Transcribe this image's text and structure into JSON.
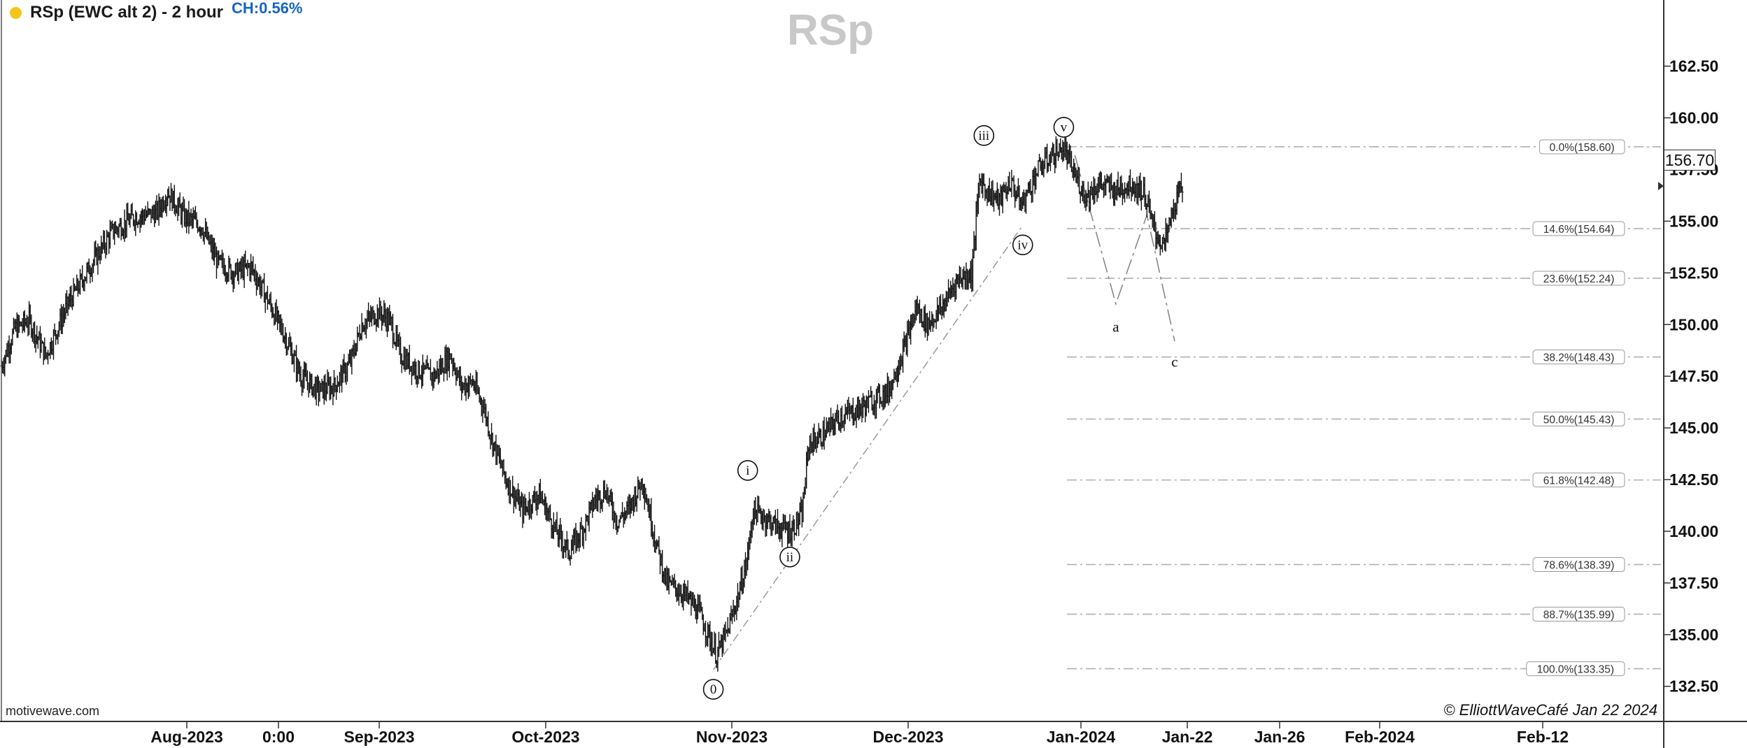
{
  "header": {
    "title": "RSp (EWC alt 2) - 2 hour",
    "change": "CH:0.56%"
  },
  "watermark": "RSp",
  "footer": {
    "site": "motivewave.com",
    "copyright": "© ElliottWaveCafé Jan 22 2024"
  },
  "colors": {
    "background": "#ffffff",
    "bars": "#111111",
    "fib_lines": "#aaaaaa",
    "status_dot": "#f5c518",
    "change_text": "#1565c0",
    "watermark": "#c8c8c8"
  },
  "chart_data": {
    "type": "ohlc",
    "title": "RSp (EWC alt 2) - 2 hour",
    "ylim": [
      130.8,
      165.7
    ],
    "y_ticks": [
      132.5,
      135.0,
      137.5,
      140.0,
      142.5,
      145.0,
      147.5,
      150.0,
      152.5,
      155.0,
      157.5,
      160.0,
      162.5
    ],
    "y_tick_labels": [
      "132.50",
      "135.00",
      "137.50",
      "140.00",
      "142.50",
      "145.00",
      "147.50",
      "150.00",
      "152.50",
      "155.00",
      "157.50",
      "160.00",
      "162.50"
    ],
    "last_price": 156.7,
    "last_price_label": "156.70",
    "x_labels": [
      "Aug-2023",
      "0:00",
      "Sep-2023",
      "Oct-2023",
      "Nov-2023",
      "Dec-2023",
      "Jan-2024",
      "Jan-22",
      "Jan-26",
      "Feb-2024",
      "Feb-12"
    ],
    "price_path": [
      [
        0,
        148.0
      ],
      [
        12,
        149.8
      ],
      [
        25,
        150.2
      ],
      [
        40,
        148.5
      ],
      [
        60,
        151.0
      ],
      [
        80,
        152.8
      ],
      [
        100,
        154.5
      ],
      [
        120,
        155.2
      ],
      [
        140,
        155.4
      ],
      [
        150,
        156.4
      ],
      [
        165,
        155.2
      ],
      [
        180,
        154.8
      ],
      [
        195,
        153.0
      ],
      [
        210,
        152.5
      ],
      [
        225,
        152.8
      ],
      [
        240,
        151.2
      ],
      [
        255,
        149.5
      ],
      [
        270,
        147.5
      ],
      [
        285,
        146.8
      ],
      [
        300,
        147.0
      ],
      [
        315,
        148.2
      ],
      [
        325,
        150.0
      ],
      [
        340,
        150.6
      ],
      [
        350,
        150.2
      ],
      [
        360,
        148.5
      ],
      [
        375,
        147.8
      ],
      [
        390,
        147.5
      ],
      [
        405,
        148.5
      ],
      [
        415,
        147.0
      ],
      [
        425,
        147.2
      ],
      [
        435,
        146.0
      ],
      [
        442,
        144.5
      ],
      [
        455,
        142.5
      ],
      [
        470,
        141.0
      ],
      [
        485,
        141.8
      ],
      [
        500,
        140.0
      ],
      [
        512,
        139.0
      ],
      [
        525,
        140.2
      ],
      [
        535,
        141.5
      ],
      [
        545,
        142.0
      ],
      [
        555,
        140.5
      ],
      [
        565,
        141.0
      ],
      [
        578,
        142.5
      ],
      [
        590,
        139.5
      ],
      [
        600,
        137.5
      ],
      [
        615,
        137.0
      ],
      [
        630,
        136.0
      ],
      [
        645,
        134.0
      ],
      [
        655,
        135.2
      ],
      [
        665,
        137.0
      ],
      [
        672,
        138.5
      ],
      [
        678,
        141.0
      ],
      [
        690,
        140.6
      ],
      [
        700,
        140.2
      ],
      [
        712,
        140.0
      ],
      [
        722,
        140.8
      ],
      [
        728,
        144.2
      ],
      [
        740,
        144.6
      ],
      [
        755,
        145.5
      ],
      [
        770,
        145.8
      ],
      [
        785,
        146.3
      ],
      [
        800,
        146.8
      ],
      [
        815,
        149.0
      ],
      [
        825,
        150.8
      ],
      [
        835,
        150.0
      ],
      [
        848,
        150.8
      ],
      [
        862,
        152.2
      ],
      [
        875,
        152.5
      ],
      [
        882,
        157.0
      ],
      [
        890,
        156.4
      ],
      [
        900,
        156.0
      ],
      [
        910,
        156.9
      ],
      [
        920,
        155.8
      ],
      [
        935,
        157.5
      ],
      [
        948,
        158.2
      ],
      [
        958,
        158.5
      ],
      [
        968,
        157.2
      ],
      [
        978,
        156.2
      ],
      [
        990,
        156.8
      ],
      [
        1005,
        156.5
      ],
      [
        1018,
        156.8
      ],
      [
        1030,
        156.4
      ],
      [
        1040,
        154.5
      ],
      [
        1048,
        153.8
      ],
      [
        1058,
        155.8
      ],
      [
        1065,
        156.7
      ]
    ],
    "fibonacci_levels": [
      {
        "price": 158.6,
        "label": "0.0%(158.60)"
      },
      {
        "price": 154.64,
        "label": "14.6%(154.64)"
      },
      {
        "price": 152.24,
        "label": "23.6%(152.24)"
      },
      {
        "price": 148.43,
        "label": "38.2%(148.43)"
      },
      {
        "price": 145.43,
        "label": "50.0%(145.43)"
      },
      {
        "price": 142.48,
        "label": "61.8%(142.48)"
      },
      {
        "price": 138.39,
        "label": "78.6%(138.39)"
      },
      {
        "price": 135.99,
        "label": "88.7%(135.99)"
      },
      {
        "price": 133.35,
        "label": "100.0%(133.35)"
      }
    ],
    "wave_labels": [
      {
        "text": "0",
        "x": 642,
        "price": 133.3,
        "circled": true
      },
      {
        "text": "i",
        "x": 673,
        "price": 142.2,
        "circled": true
      },
      {
        "text": "ii",
        "x": 711,
        "price": 139.7,
        "circled": true
      },
      {
        "text": "iii",
        "x": 886,
        "price": 158.4,
        "circled": true
      },
      {
        "text": "iv",
        "x": 921,
        "price": 154.8,
        "circled": true
      },
      {
        "text": "v",
        "x": 958,
        "price": 158.8,
        "circled": true
      },
      {
        "text": "a",
        "x": 1005,
        "price": 150.0,
        "circled": false
      },
      {
        "text": "c",
        "x": 1058,
        "price": 148.3,
        "circled": false
      }
    ],
    "trend_line": [
      [
        642,
        133.3
      ],
      [
        921,
        154.8
      ]
    ],
    "projection_path": [
      [
        968,
        158.2
      ],
      [
        1005,
        151.0
      ],
      [
        1033,
        155.3
      ],
      [
        1058,
        149.2
      ]
    ],
    "grid": false
  }
}
